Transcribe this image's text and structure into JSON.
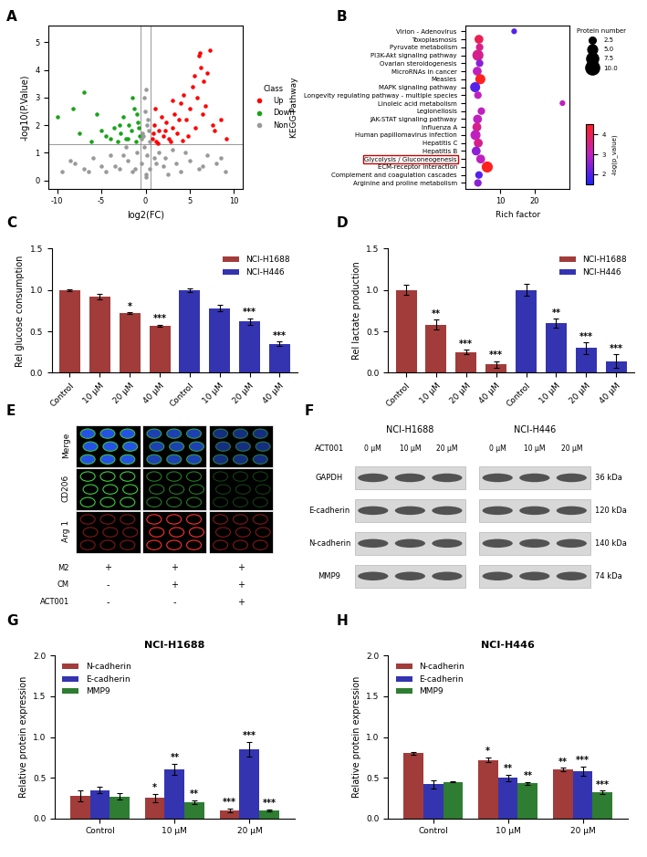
{
  "chart_data": [
    {
      "panel": "A",
      "type": "scatter",
      "x_label": "log2(FC)",
      "y_label": "-log10(P.Value)",
      "legend": "right",
      "legend_title": "Class",
      "xlim": [
        -11,
        11
      ],
      "xticks": [
        -10,
        -5,
        0,
        5,
        10
      ],
      "ylim": [
        -0.3,
        5.6
      ],
      "yticks": [
        0,
        1,
        2,
        3,
        4,
        5
      ],
      "reference_lines": {
        "x": [
          -0.585,
          0.585
        ],
        "y": [
          1.3
        ]
      },
      "series": [
        {
          "name": "Up",
          "color": "#ff0000",
          "x": [
            0.8,
            1.0,
            1.2,
            1.5,
            1.8,
            2.0,
            2.3,
            2.6,
            3.0,
            3.3,
            3.6,
            4.0,
            4.3,
            4.6,
            5.0,
            5.3,
            5.6,
            6.0,
            6.3,
            6.6,
            7.0,
            7.3,
            6.8,
            5.8,
            4.8,
            3.8,
            2.8,
            1.4,
            0.9,
            6.2,
            7.8,
            8.5,
            9.2,
            5.5,
            6.5,
            7.6,
            4.2,
            3.1,
            2.2,
            1.1
          ],
          "values": [
            1.5,
            2.0,
            1.4,
            1.8,
            2.3,
            1.6,
            2.1,
            1.5,
            1.9,
            2.4,
            1.7,
            2.8,
            3.1,
            2.2,
            2.6,
            3.4,
            1.9,
            4.5,
            4.1,
            3.6,
            3.9,
            4.7,
            2.7,
            3.0,
            1.6,
            2.2,
            1.4,
            1.35,
            1.7,
            4.6,
            1.8,
            2.2,
            1.5,
            3.8,
            2.4,
            2.0,
            1.45,
            2.9,
            1.8,
            2.6
          ]
        },
        {
          "name": "Down",
          "color": "#1aa31a",
          "x": [
            -0.7,
            -0.9,
            -1.1,
            -1.3,
            -1.6,
            -1.9,
            -2.2,
            -2.5,
            -2.8,
            -3.2,
            -3.6,
            -4.0,
            -4.5,
            -5.0,
            -5.5,
            -6.2,
            -7.0,
            -7.5,
            -8.2,
            -10.0,
            -1.0,
            -1.5,
            -2.0,
            -0.8,
            -3.0
          ],
          "values": [
            1.6,
            2.1,
            1.4,
            2.6,
            1.8,
            2.0,
            1.5,
            2.3,
            1.7,
            1.4,
            1.9,
            1.5,
            1.6,
            1.8,
            2.4,
            1.4,
            3.2,
            1.7,
            2.6,
            2.3,
            2.4,
            3.0,
            1.5,
            1.9,
            2.0
          ]
        },
        {
          "name": "Non",
          "color": "#999999",
          "x": [
            -9.5,
            -8.0,
            -7.0,
            -6.0,
            -5.0,
            -4.0,
            -3.0,
            -2.0,
            -1.0,
            0.0,
            1.0,
            2.0,
            3.0,
            4.0,
            5.0,
            6.0,
            7.0,
            8.0,
            9.0,
            -0.3,
            0.2,
            -0.1,
            0.4,
            -0.5,
            0.1,
            -0.2,
            0.3,
            -0.4,
            0.5,
            0.0,
            -3.5,
            -2.5,
            -1.5,
            -0.5,
            0.5,
            1.5,
            2.5,
            3.5,
            -6.5,
            6.5,
            -0.2,
            0.2,
            -1.2,
            1.2,
            -2.2,
            2.2,
            -4.5,
            4.5,
            -8.5,
            8.5
          ],
          "values": [
            0.3,
            0.6,
            0.4,
            0.8,
            0.5,
            0.9,
            0.4,
            0.7,
            1.0,
            0.2,
            0.8,
            0.5,
            1.1,
            0.3,
            0.7,
            0.4,
            0.9,
            0.6,
            0.3,
            1.6,
            2.0,
            2.5,
            1.8,
            1.5,
            3.3,
            3.0,
            2.2,
            1.7,
            1.4,
            0.1,
            0.5,
            0.9,
            0.3,
            0.6,
            0.4,
            1.0,
            0.2,
            0.6,
            0.3,
            0.5,
            1.2,
            0.9,
            0.4,
            0.6,
            1.2,
            0.8,
            0.3,
            1.0,
            0.7,
            0.8
          ]
        }
      ]
    },
    {
      "panel": "B",
      "type": "bubble",
      "x_label": "Rich factor",
      "y_label": "KEGG Pathway",
      "categories": [
        "Virion - Adenovirus",
        "Toxoplasmosis",
        "Pyruvate metabolism",
        "PI3K-Akt signaling pathway",
        "Ovarian steroidogenesis",
        "MicroRNAs in cancer",
        "Measles",
        "MAPK signaling pathway",
        "Longevity regulating pathway - multiple species",
        "Linoleic acid metabolism",
        "Legionellosis",
        "JAK-STAT signaling pathway",
        "Influenza A",
        "Human papillomavirus infection",
        "Hepatitis C",
        "Hepatitis B",
        "Glycolysis / Gluconeogenesis",
        "ECM-receptor interaction",
        "Complement and coagulation cascades",
        "Arginine and proline metabolism"
      ],
      "values": [
        14,
        3.8,
        4,
        3.5,
        4,
        3.3,
        4.2,
        2.7,
        3.5,
        28,
        4.5,
        3.4,
        3.2,
        2.8,
        3.6,
        3.0,
        4.3,
        6.2,
        3.8,
        3.5
      ],
      "sizes": [
        1,
        3,
        2,
        5,
        2,
        3,
        4,
        4,
        2,
        1,
        2,
        3,
        3,
        4,
        3,
        3,
        3,
        5,
        2,
        2
      ],
      "color_values": [
        2,
        4,
        3.5,
        3.5,
        2.5,
        3,
        4.5,
        2,
        3,
        3,
        3,
        3,
        3.5,
        3,
        3.5,
        2.5,
        3,
        4.5,
        2,
        2.5
      ],
      "xlim": [
        0,
        30
      ],
      "xticks": [
        10,
        20
      ],
      "size_legend_title": "Protein number",
      "size_legend": [
        2.5,
        5.0,
        7.5,
        10.0
      ],
      "colorbar_label": "-log(p_value)",
      "colorbar_range": [
        1.5,
        4.5
      ],
      "colorbar_ticks": [
        2,
        3,
        4
      ],
      "highlight": "Glycolysis / Gluconeogenesis"
    },
    {
      "panel": "C",
      "type": "bar",
      "y_label": "Rel glucose consumption",
      "legend": "upper right",
      "categories": [
        "Control",
        "10 μM",
        "20 μM",
        "40 μM",
        "Control",
        "10 μM",
        "20 μM",
        "40 μM"
      ],
      "ylim": [
        0,
        1.5
      ],
      "yticks": [
        {
          "value": 0,
          "label": "0.0"
        },
        {
          "value": 0.5,
          "label": "0.5"
        },
        {
          "value": 1.0,
          "label": "1.0"
        },
        {
          "value": 1.5,
          "label": "1.5"
        }
      ],
      "series": [
        {
          "name": "NCI-H1688",
          "color": "#a13c3a",
          "values": [
            1.0,
            0.92,
            0.72,
            0.57,
            null,
            null,
            null,
            null
          ],
          "errors": [
            0.01,
            0.03,
            0.01,
            0.01,
            null,
            null,
            null,
            null
          ],
          "annotations": [
            null,
            null,
            "*",
            "***",
            null,
            null,
            null,
            null
          ]
        },
        {
          "name": "NCI-H446",
          "color": "#3434b0",
          "values": [
            null,
            null,
            null,
            null,
            1.0,
            0.78,
            0.62,
            0.35
          ],
          "errors": [
            null,
            null,
            null,
            null,
            0.02,
            0.04,
            0.04,
            0.03
          ],
          "annotations": [
            null,
            null,
            null,
            null,
            null,
            null,
            "***",
            "***"
          ]
        }
      ]
    },
    {
      "panel": "D",
      "type": "bar",
      "y_label": "Rel lactate production",
      "legend": "upper right",
      "categories": [
        "Control",
        "10 μM",
        "20 μM",
        "40 μM",
        "Control",
        "10 μM",
        "20 μM",
        "40 μM"
      ],
      "ylim": [
        0,
        1.5
      ],
      "yticks": [
        {
          "value": 0,
          "label": "0.0"
        },
        {
          "value": 0.5,
          "label": "0.5"
        },
        {
          "value": 1.0,
          "label": "1.0"
        },
        {
          "value": 1.5,
          "label": "1.5"
        }
      ],
      "series": [
        {
          "name": "NCI-H1688",
          "color": "#a13c3a",
          "values": [
            1.0,
            0.58,
            0.25,
            0.1,
            null,
            null,
            null,
            null
          ],
          "errors": [
            0.06,
            0.06,
            0.03,
            0.04,
            null,
            null,
            null,
            null
          ],
          "annotations": [
            null,
            "**",
            "***",
            "***",
            null,
            null,
            null,
            null
          ]
        },
        {
          "name": "NCI-H446",
          "color": "#3434b0",
          "values": [
            null,
            null,
            null,
            null,
            1.0,
            0.6,
            0.3,
            0.14
          ],
          "errors": [
            null,
            null,
            null,
            null,
            0.07,
            0.05,
            0.07,
            0.08
          ],
          "annotations": [
            null,
            null,
            null,
            null,
            null,
            "**",
            "***",
            "***"
          ]
        }
      ]
    },
    {
      "panel": "G",
      "type": "bar",
      "title": "NCI-H1688",
      "y_label": "Relative protein expression",
      "legend": "upper left",
      "categories": [
        "Control",
        "10 μM",
        "20 μM"
      ],
      "ylim": [
        0,
        2.0
      ],
      "yticks": [
        {
          "value": 0,
          "label": "0.0"
        },
        {
          "value": 0.5,
          "label": "0.5"
        },
        {
          "value": 1.0,
          "label": "1.0"
        },
        {
          "value": 1.5,
          "label": "1.5"
        },
        {
          "value": 2.0,
          "label": "2.0"
        }
      ],
      "series": [
        {
          "name": "N-cadherin",
          "color": "#a13c3a",
          "values": [
            0.28,
            0.25,
            0.1
          ],
          "errors": [
            0.07,
            0.05,
            0.02
          ],
          "annotations": [
            null,
            "*",
            "***"
          ]
        },
        {
          "name": "E-cadherin",
          "color": "#3434b0",
          "values": [
            0.35,
            0.6,
            0.85
          ],
          "errors": [
            0.04,
            0.07,
            0.09
          ],
          "annotations": [
            null,
            "**",
            "***"
          ]
        },
        {
          "name": "MMP9",
          "color": "#2e7d32",
          "values": [
            0.27,
            0.2,
            0.1
          ],
          "errors": [
            0.04,
            0.02,
            0.01
          ],
          "annotations": [
            null,
            "**",
            "***"
          ]
        }
      ]
    },
    {
      "panel": "H",
      "type": "bar",
      "title": "NCI-H446",
      "y_label": "Relative protein expression",
      "legend": "upper left",
      "categories": [
        "Control",
        "10 μM",
        "20 μM"
      ],
      "ylim": [
        0,
        2.0
      ],
      "yticks": [
        {
          "value": 0,
          "label": "0.0"
        },
        {
          "value": 0.5,
          "label": "0.5"
        },
        {
          "value": 1.0,
          "label": "1.0"
        },
        {
          "value": 1.5,
          "label": "1.5"
        },
        {
          "value": 2.0,
          "label": "2.0"
        }
      ],
      "series": [
        {
          "name": "N-cadherin",
          "color": "#a13c3a",
          "values": [
            0.8,
            0.72,
            0.6
          ],
          "errors": [
            0.02,
            0.03,
            0.02
          ],
          "annotations": [
            null,
            "*",
            "**"
          ]
        },
        {
          "name": "E-cadherin",
          "color": "#3434b0",
          "values": [
            0.42,
            0.5,
            0.58
          ],
          "errors": [
            0.05,
            0.04,
            0.06
          ],
          "annotations": [
            null,
            "**",
            "***"
          ]
        },
        {
          "name": "MMP9",
          "color": "#2e7d32",
          "values": [
            0.45,
            0.43,
            0.32
          ],
          "errors": [
            0.01,
            0.02,
            0.02
          ],
          "annotations": [
            null,
            "**",
            "***"
          ]
        }
      ]
    }
  ],
  "panel_E": {
    "panel": "E",
    "rows": [
      "Merge",
      "CD206",
      "Arg 1"
    ],
    "conditions": [
      {
        "name": "M2",
        "marks": [
          "+",
          "+",
          "+"
        ]
      },
      {
        "name": "CM",
        "marks": [
          "-",
          "+",
          "+"
        ]
      },
      {
        "name": "ACT001",
        "marks": [
          "-",
          "-",
          "+"
        ]
      }
    ]
  },
  "panel_F": {
    "panel": "F",
    "treatment": "ACT001",
    "doses": [
      "0 μM",
      "10 μM",
      "20 μM"
    ],
    "blots": [
      "NCI-H1688",
      "NCI-H446"
    ],
    "proteins": [
      "GAPDH",
      "E-cadherin",
      "N-cadherin",
      "MMP9"
    ],
    "sizes": [
      "36 kDa",
      "120 kDa",
      "140 kDa",
      "74 kDa"
    ]
  }
}
